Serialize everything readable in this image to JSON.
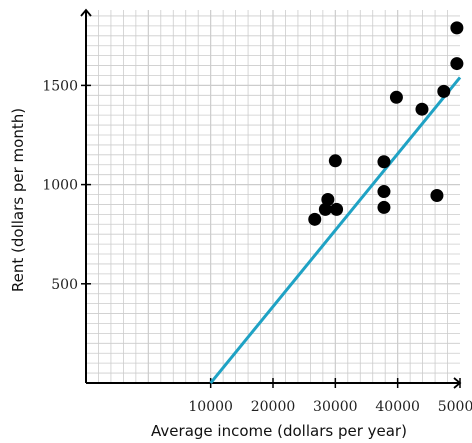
{
  "chart_data": {
    "type": "scatter",
    "title": "",
    "xlabel": "Average income (dollars per year)",
    "ylabel": "Rent (dollars per month)",
    "xlim": [
      -10000,
      50000
    ],
    "ylim": [
      0,
      1880
    ],
    "grid": true,
    "x_ticks": [
      10000,
      20000,
      30000,
      40000,
      50000
    ],
    "x_tick_labels": [
      "10000",
      "20000",
      "30000",
      "40000",
      "50000"
    ],
    "y_ticks": [
      500,
      1000,
      1500
    ],
    "y_tick_labels": [
      "500",
      "1000",
      "1500"
    ],
    "points": [
      {
        "x": 26700,
        "y": 825
      },
      {
        "x": 28400,
        "y": 875
      },
      {
        "x": 28800,
        "y": 925
      },
      {
        "x": 30000,
        "y": 1120
      },
      {
        "x": 30200,
        "y": 875
      },
      {
        "x": 37800,
        "y": 1115
      },
      {
        "x": 37800,
        "y": 965
      },
      {
        "x": 37800,
        "y": 885
      },
      {
        "x": 39800,
        "y": 1440
      },
      {
        "x": 43900,
        "y": 1380
      },
      {
        "x": 46300,
        "y": 945
      },
      {
        "x": 47400,
        "y": 1470
      },
      {
        "x": 49500,
        "y": 1610
      },
      {
        "x": 49500,
        "y": 1790
      }
    ],
    "trend_line": {
      "x": [
        10000,
        50000
      ],
      "y": [
        0,
        1540
      ]
    },
    "colors": {
      "points": "#000000",
      "trend_line": "#1fa2c4",
      "grid": "#cccccc",
      "axis": "#000000"
    }
  }
}
